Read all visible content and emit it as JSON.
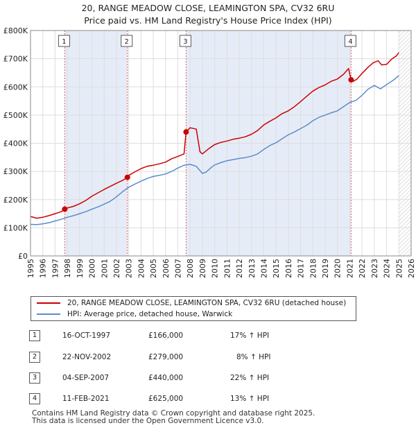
{
  "title": "20, RANGE MEADOW CLOSE, LEAMINGTON SPA, CV32 6RU",
  "subtitle": "Price paid vs. HM Land Registry's House Price Index (HPI)",
  "legend": {
    "property": "20, RANGE MEADOW CLOSE, LEAMINGTON SPA, CV32 6RU (detached house)",
    "hpi": "HPI: Average price, detached house, Warwick"
  },
  "colors": {
    "property": "#cc0000",
    "hpi": "#5b8ccc",
    "shade": "#e6ecf7",
    "marker_line": "#e06060"
  },
  "transactions": [
    {
      "num": "1",
      "date": "16-OCT-1997",
      "price": "£166,000",
      "hpi": "17% ↑ HPI"
    },
    {
      "num": "2",
      "date": "22-NOV-2002",
      "price": "£279,000",
      "hpi": "8% ↑ HPI"
    },
    {
      "num": "3",
      "date": "04-SEP-2007",
      "price": "£440,000",
      "hpi": "22% ↑ HPI"
    },
    {
      "num": "4",
      "date": "11-FEB-2021",
      "price": "£625,000",
      "hpi": "13% ↑ HPI"
    }
  ],
  "footer": {
    "line1": "Contains HM Land Registry data © Crown copyright and database right 2025.",
    "line2": "This data is licensed under the Open Government Licence v3.0."
  },
  "chart_data": {
    "type": "line",
    "title": "20, RANGE MEADOW CLOSE, LEAMINGTON SPA, CV32 6RU",
    "subtitle": "Price paid vs. HM Land Registry's House Price Index (HPI)",
    "xlim": [
      1995,
      2026
    ],
    "ylim": [
      0,
      800000
    ],
    "x_ticks": [
      "1995",
      "1996",
      "1997",
      "1998",
      "1999",
      "2000",
      "2001",
      "2002",
      "2003",
      "2004",
      "2005",
      "2006",
      "2007",
      "2008",
      "2009",
      "2010",
      "2011",
      "2012",
      "2013",
      "2014",
      "2015",
      "2016",
      "2017",
      "2018",
      "2019",
      "2020",
      "2021",
      "2022",
      "2023",
      "2024",
      "2025",
      "2026"
    ],
    "y_ticks": [
      {
        "value": 0,
        "label": "£0"
      },
      {
        "value": 100000,
        "label": "£100K"
      },
      {
        "value": 200000,
        "label": "£200K"
      },
      {
        "value": 300000,
        "label": "£300K"
      },
      {
        "value": 400000,
        "label": "£400K"
      },
      {
        "value": 500000,
        "label": "£500K"
      },
      {
        "value": 600000,
        "label": "£600K"
      },
      {
        "value": 700000,
        "label": "£700K"
      },
      {
        "value": 800000,
        "label": "£800K"
      }
    ],
    "sales": [
      {
        "label": "1",
        "x": 1997.79,
        "y": 166000
      },
      {
        "label": "2",
        "x": 2002.89,
        "y": 279000
      },
      {
        "label": "3",
        "x": 2007.67,
        "y": 440000
      },
      {
        "label": "4",
        "x": 2021.11,
        "y": 625000
      }
    ],
    "shaded_ranges": [
      [
        1997.79,
        2002.89
      ],
      [
        2007.67,
        2021.11
      ]
    ],
    "hatched_from": 2025.0,
    "series": [
      {
        "name": "20, RANGE MEADOW CLOSE, LEAMINGTON SPA, CV32 6RU (detached house)",
        "x": [
          1995.0,
          1995.5,
          1996.0,
          1996.5,
          1997.0,
          1997.5,
          1997.79,
          1998.0,
          1998.5,
          1999.0,
          1999.5,
          2000.0,
          2000.5,
          2001.0,
          2001.5,
          2002.0,
          2002.5,
          2002.89,
          2003.0,
          2003.5,
          2004.0,
          2004.5,
          2005.0,
          2005.5,
          2006.0,
          2006.5,
          2007.0,
          2007.5,
          2007.67,
          2008.0,
          2008.5,
          2008.8,
          2009.0,
          2009.5,
          2010.0,
          2010.5,
          2011.0,
          2011.5,
          2012.0,
          2012.5,
          2013.0,
          2013.5,
          2014.0,
          2014.5,
          2015.0,
          2015.5,
          2016.0,
          2016.5,
          2017.0,
          2017.5,
          2018.0,
          2018.5,
          2019.0,
          2019.5,
          2020.0,
          2020.5,
          2020.9,
          2021.11,
          2021.3,
          2021.6,
          2022.0,
          2022.5,
          2022.9,
          2023.3,
          2023.6,
          2024.0,
          2024.4,
          2024.8,
          2025.0
        ],
        "values": [
          140000,
          134000,
          137000,
          143000,
          150000,
          157000,
          166000,
          170000,
          176000,
          185000,
          197000,
          212000,
          224000,
          236000,
          247000,
          258000,
          268000,
          279000,
          286000,
          298000,
          310000,
          318000,
          322000,
          327000,
          333000,
          345000,
          353000,
          362000,
          440000,
          455000,
          450000,
          370000,
          362000,
          380000,
          395000,
          403000,
          408000,
          414000,
          418000,
          423000,
          432000,
          445000,
          465000,
          478000,
          490000,
          505000,
          515000,
          530000,
          548000,
          567000,
          585000,
          598000,
          607000,
          620000,
          628000,
          645000,
          665000,
          625000,
          620000,
          628000,
          648000,
          670000,
          685000,
          693000,
          678000,
          680000,
          698000,
          710000,
          722000
        ]
      },
      {
        "name": "HPI: Average price, detached house, Warwick",
        "x": [
          1995.0,
          1995.5,
          1996.0,
          1996.5,
          1997.0,
          1997.5,
          1998.0,
          1998.5,
          1999.0,
          1999.5,
          2000.0,
          2000.5,
          2001.0,
          2001.5,
          2002.0,
          2002.5,
          2003.0,
          2003.5,
          2004.0,
          2004.5,
          2005.0,
          2005.5,
          2006.0,
          2006.5,
          2007.0,
          2007.5,
          2008.0,
          2008.5,
          2009.0,
          2009.3,
          2009.7,
          2010.0,
          2010.5,
          2011.0,
          2011.5,
          2012.0,
          2012.5,
          2013.0,
          2013.5,
          2014.0,
          2014.5,
          2015.0,
          2015.5,
          2016.0,
          2016.5,
          2017.0,
          2017.5,
          2018.0,
          2018.5,
          2019.0,
          2019.5,
          2020.0,
          2020.5,
          2021.0,
          2021.5,
          2022.0,
          2022.5,
          2023.0,
          2023.5,
          2024.0,
          2024.5,
          2025.0
        ],
        "values": [
          112000,
          111000,
          114000,
          118000,
          124000,
          130000,
          137000,
          143000,
          150000,
          157000,
          166000,
          174000,
          184000,
          194000,
          210000,
          228000,
          244000,
          255000,
          265000,
          275000,
          282000,
          286000,
          291000,
          300000,
          312000,
          322000,
          325000,
          318000,
          293000,
          297000,
          313000,
          323000,
          331000,
          338000,
          342000,
          346000,
          349000,
          354000,
          362000,
          378000,
          392000,
          402000,
          416000,
          430000,
          440000,
          452000,
          464000,
          480000,
          492000,
          500000,
          508000,
          515000,
          530000,
          545000,
          552000,
          570000,
          592000,
          605000,
          593000,
          608000,
          622000,
          640000
        ]
      }
    ]
  }
}
